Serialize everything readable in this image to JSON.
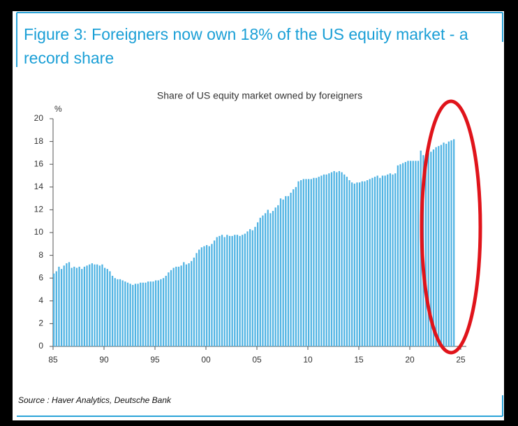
{
  "title": "Figure 3: Foreigners now own 18% of the US equity market - a record share",
  "source": "Source : Haver Analytics, Deutsche Bank",
  "chart_data": {
    "type": "bar",
    "title": "Share of US equity market owned by foreigners",
    "y_unit": "%",
    "color": "#4fb3e3",
    "grid": false,
    "annotation_color": "#e0141b",
    "xlim": [
      1985,
      2025
    ],
    "ylim": [
      0,
      20
    ],
    "xticks": [
      {
        "value": 1985,
        "label": "85"
      },
      {
        "value": 1990,
        "label": "90"
      },
      {
        "value": 1995,
        "label": "95"
      },
      {
        "value": 2000,
        "label": "00"
      },
      {
        "value": 2005,
        "label": "05"
      },
      {
        "value": 2010,
        "label": "10"
      },
      {
        "value": 2015,
        "label": "15"
      },
      {
        "value": 2020,
        "label": "20"
      },
      {
        "value": 2025,
        "label": "25"
      }
    ],
    "yticks": [
      0,
      2,
      4,
      6,
      8,
      10,
      12,
      14,
      16,
      18,
      20
    ],
    "x": [
      1985,
      1985.25,
      1985.5,
      1985.75,
      1986,
      1986.25,
      1986.5,
      1986.75,
      1987,
      1987.25,
      1987.5,
      1987.75,
      1988,
      1988.25,
      1988.5,
      1988.75,
      1989,
      1989.25,
      1989.5,
      1989.75,
      1990,
      1990.25,
      1990.5,
      1990.75,
      1991,
      1991.25,
      1991.5,
      1991.75,
      1992,
      1992.25,
      1992.5,
      1992.75,
      1993,
      1993.25,
      1993.5,
      1993.75,
      1994,
      1994.25,
      1994.5,
      1994.75,
      1995,
      1995.25,
      1995.5,
      1995.75,
      1996,
      1996.25,
      1996.5,
      1996.75,
      1997,
      1997.25,
      1997.5,
      1997.75,
      1998,
      1998.25,
      1998.5,
      1998.75,
      1999,
      1999.25,
      1999.5,
      1999.75,
      2000,
      2000.25,
      2000.5,
      2000.75,
      2001,
      2001.25,
      2001.5,
      2001.75,
      2002,
      2002.25,
      2002.5,
      2002.75,
      2003,
      2003.25,
      2003.5,
      2003.75,
      2004,
      2004.25,
      2004.5,
      2004.75,
      2005,
      2005.25,
      2005.5,
      2005.75,
      2006,
      2006.25,
      2006.5,
      2006.75,
      2007,
      2007.25,
      2007.5,
      2007.75,
      2008,
      2008.25,
      2008.5,
      2008.75,
      2009,
      2009.25,
      2009.5,
      2009.75,
      2010,
      2010.25,
      2010.5,
      2010.75,
      2011,
      2011.25,
      2011.5,
      2011.75,
      2012,
      2012.25,
      2012.5,
      2012.75,
      2013,
      2013.25,
      2013.5,
      2013.75,
      2014,
      2014.25,
      2014.5,
      2014.75,
      2015,
      2015.25,
      2015.5,
      2015.75,
      2016,
      2016.25,
      2016.5,
      2016.75,
      2017,
      2017.25,
      2017.5,
      2017.75,
      2018,
      2018.25,
      2018.5,
      2018.75,
      2019,
      2019.25,
      2019.5,
      2019.75,
      2020,
      2020.25,
      2020.5,
      2020.75,
      2021,
      2021.25,
      2021.5,
      2021.75,
      2022,
      2022.25,
      2022.5,
      2022.75,
      2023,
      2023.25,
      2023.5,
      2023.75,
      2024,
      2024.25
    ],
    "values": [
      6.4,
      6.6,
      7.0,
      6.8,
      7.1,
      7.3,
      7.4,
      6.9,
      7.0,
      6.9,
      7.0,
      6.8,
      7.0,
      7.1,
      7.2,
      7.3,
      7.2,
      7.2,
      7.1,
      7.2,
      6.9,
      6.8,
      6.6,
      6.2,
      6.0,
      5.9,
      5.9,
      5.8,
      5.7,
      5.6,
      5.5,
      5.4,
      5.5,
      5.5,
      5.6,
      5.6,
      5.6,
      5.7,
      5.7,
      5.7,
      5.8,
      5.8,
      5.9,
      6.0,
      6.2,
      6.5,
      6.7,
      6.9,
      7.0,
      7.0,
      7.1,
      7.4,
      7.2,
      7.3,
      7.5,
      7.8,
      8.2,
      8.5,
      8.7,
      8.8,
      8.9,
      8.8,
      9.0,
      9.3,
      9.6,
      9.7,
      9.8,
      9.6,
      9.8,
      9.7,
      9.7,
      9.8,
      9.8,
      9.7,
      9.8,
      9.9,
      10.1,
      10.3,
      10.2,
      10.5,
      10.9,
      11.3,
      11.5,
      11.7,
      12.0,
      11.7,
      11.9,
      12.2,
      12.4,
      13.0,
      12.9,
      13.2,
      13.2,
      13.5,
      13.8,
      14.0,
      14.5,
      14.6,
      14.7,
      14.7,
      14.7,
      14.7,
      14.8,
      14.8,
      14.9,
      15.0,
      15.1,
      15.1,
      15.2,
      15.3,
      15.4,
      15.3,
      15.4,
      15.3,
      15.1,
      14.9,
      14.6,
      14.4,
      14.3,
      14.4,
      14.4,
      14.5,
      14.5,
      14.6,
      14.7,
      14.8,
      14.9,
      15.0,
      14.8,
      15.0,
      15.0,
      15.1,
      15.2,
      15.1,
      15.2,
      15.9,
      16.0,
      16.1,
      16.2,
      16.3,
      16.3,
      16.3,
      16.3,
      16.3,
      17.2,
      16.8,
      16.9,
      17.0,
      17.1,
      17.3,
      17.5,
      17.6,
      17.7,
      17.9,
      17.8,
      18.0,
      18.1,
      18.2
    ]
  }
}
